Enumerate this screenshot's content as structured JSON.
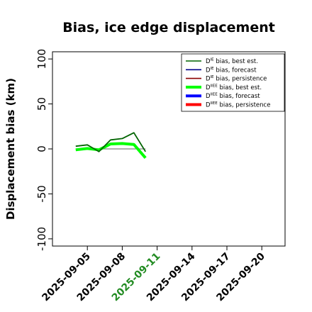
{
  "chart_data": {
    "type": "line",
    "title": "Bias, ice edge displacement",
    "ylabel": "Displacement bias (km)",
    "xlabel": "",
    "ylim": [
      -108,
      108
    ],
    "xlim": [
      "2025-09-02",
      "2025-09-22"
    ],
    "x_ticks": [
      "2025-09-05",
      "2025-09-08",
      "2025-09-11",
      "2025-09-14",
      "2025-09-17",
      "2025-09-20"
    ],
    "x_tick_colors": [
      "#000000",
      "#000000",
      "#228B22",
      "#000000",
      "#000000",
      "#000000"
    ],
    "y_ticks": [
      -100,
      -50,
      0,
      50,
      100
    ],
    "zero_line": 0,
    "legend_position": "top-right",
    "series": [
      {
        "name": "D^IE bias, best est.",
        "name_main": "D",
        "name_sup": "IE",
        "name_rest": " bias, best est.",
        "color": "#006400",
        "width": "thin",
        "x": [
          "2025-09-04",
          "2025-09-05",
          "2025-09-06",
          "2025-09-07",
          "2025-09-08",
          "2025-09-09",
          "2025-09-10"
        ],
        "y": [
          3,
          4.5,
          -3,
          10,
          11.5,
          18,
          -3
        ]
      },
      {
        "name": "D^IE bias, forecast",
        "name_main": "D",
        "name_sup": "IE",
        "name_rest": " bias, forecast",
        "color": "#00008B",
        "width": "thin",
        "x": [],
        "y": []
      },
      {
        "name": "D^IE bias, persistence",
        "name_main": "D",
        "name_sup": "IE",
        "name_rest": " bias, persistence",
        "color": "#8B0000",
        "width": "thin",
        "x": [],
        "y": []
      },
      {
        "name": "D^IIEE bias, best est.",
        "name_main": "D",
        "name_sup": "IIEE",
        "name_rest": " bias, best est.",
        "color": "#00FF00",
        "width": "thick",
        "x": [
          "2025-09-04",
          "2025-09-05",
          "2025-09-06",
          "2025-09-07",
          "2025-09-08",
          "2025-09-09",
          "2025-09-10"
        ],
        "y": [
          -1,
          0.5,
          -1,
          5.5,
          6,
          5,
          -10
        ]
      },
      {
        "name": "D^IIEE bias, forecast",
        "name_main": "D",
        "name_sup": "IIEE",
        "name_rest": " bias, forecast",
        "color": "#0000FF",
        "width": "thick",
        "x": [],
        "y": []
      },
      {
        "name": "D^IIEE bias, persistence",
        "name_main": "D",
        "name_sup": "IIEE",
        "name_rest": " bias, persistence",
        "color": "#FF0000",
        "width": "thick",
        "x": [],
        "y": []
      }
    ]
  }
}
